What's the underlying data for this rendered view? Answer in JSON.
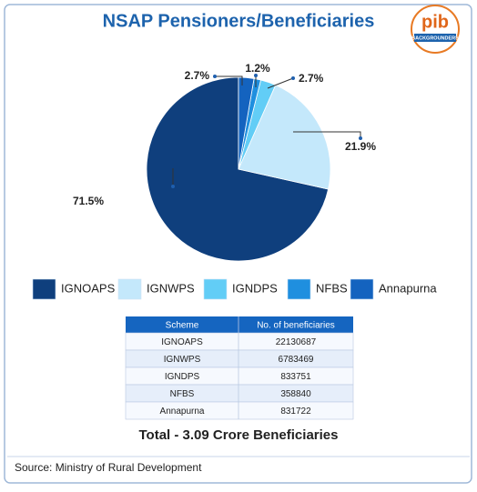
{
  "chart_data": {
    "type": "pie",
    "title": "NSAP Pensioners/Beneficiaries",
    "categories": [
      "IGNOAPS",
      "IGNWPS",
      "IGNDPS",
      "NFBS",
      "Annapurna"
    ],
    "values": [
      71.5,
      21.9,
      2.7,
      1.2,
      2.7
    ],
    "value_labels": [
      "71.5%",
      "21.9%",
      "2.7%",
      "1.2%",
      "2.7%"
    ],
    "colors": [
      "#0f3f7d",
      "#c4e8fb",
      "#62cdf6",
      "#1f8fdf",
      "#1463bf"
    ]
  },
  "logo": {
    "name": "pib",
    "tagline": "BACKGROUNDERS"
  },
  "table": {
    "header": [
      "Scheme",
      "No. of beneficiaries"
    ],
    "rows": [
      [
        "IGNOAPS",
        22130687
      ],
      [
        "IGNWPS",
        6783469
      ],
      [
        "IGNDPS",
        833751
      ],
      [
        "NFBS",
        358840
      ],
      [
        "Annapurna",
        831722
      ]
    ]
  },
  "total": "Total - 3.09 Crore Beneficiaries",
  "source": "Source: Ministry of Rural Development"
}
